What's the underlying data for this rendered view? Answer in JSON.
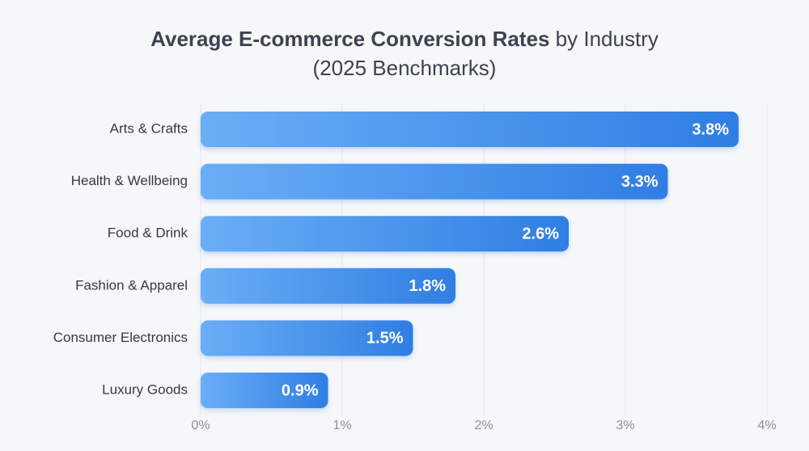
{
  "chart_data": {
    "type": "barh",
    "title": {
      "bold": "Average E-commerce Conversion Rates",
      "regular": "by Industry"
    },
    "subtitle": "(2025 Benchmarks)",
    "categories": [
      "Arts & Crafts",
      "Health & Wellbeing",
      "Food & Drink",
      "Fashion & Apparel",
      "Consumer Electronics",
      "Luxury Goods"
    ],
    "values": [
      3.8,
      3.3,
      2.6,
      1.8,
      1.5,
      0.9
    ],
    "value_labels": [
      "3.8%",
      "3.3%",
      "2.6%",
      "1.8%",
      "1.5%",
      "0.9%"
    ],
    "gradient": [
      "#6aaef6",
      "#2f7ee3"
    ],
    "xlim": [
      0,
      4
    ],
    "xticks": [
      {
        "value": 0,
        "label": "0%"
      },
      {
        "value": 1,
        "label": "1%"
      },
      {
        "value": 2,
        "label": "2%"
      },
      {
        "value": 3,
        "label": "3%"
      },
      {
        "value": 4,
        "label": "4%"
      }
    ],
    "grid": true
  }
}
